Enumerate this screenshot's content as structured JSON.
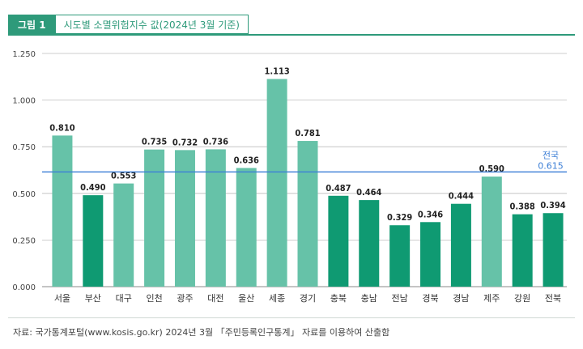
{
  "header": {
    "figure_label": "그림 1",
    "title": "시도별 소멸위험지수 값(2024년 3월 기준)"
  },
  "source": "자료: 국가통계포털(www.kosis.go.kr) 2024년 3월 「주민등록인구통계」 자료를 이용하여 산출함",
  "colors": {
    "light_bar": "#66c2a8",
    "dark_bar": "#0f9a72",
    "reference_line": "#3d7fd6",
    "accent": "#2e9a7a"
  },
  "chart_data": {
    "type": "bar",
    "categories": [
      "서울",
      "부산",
      "대구",
      "인천",
      "광주",
      "대전",
      "울산",
      "세종",
      "경기",
      "충북",
      "충남",
      "전남",
      "경북",
      "경남",
      "제주",
      "강원",
      "전북"
    ],
    "values": [
      0.81,
      0.49,
      0.553,
      0.735,
      0.732,
      0.736,
      0.636,
      1.113,
      0.781,
      0.487,
      0.464,
      0.329,
      0.346,
      0.444,
      0.59,
      0.388,
      0.394
    ],
    "value_labels": [
      "0.810",
      "0.490",
      "0.553",
      "0.735",
      "0.732",
      "0.736",
      "0.636",
      "1.113",
      "0.781",
      "0.487",
      "0.464",
      "0.329",
      "0.346",
      "0.444",
      "0.590",
      "0.388",
      "0.394"
    ],
    "highlight": [
      false,
      true,
      false,
      false,
      false,
      false,
      false,
      false,
      false,
      true,
      true,
      true,
      true,
      true,
      false,
      true,
      true
    ],
    "ylim": [
      0,
      1.25
    ],
    "yticks": [
      "0.000",
      "0.250",
      "0.500",
      "0.750",
      "1.000",
      "1.250"
    ],
    "reference": {
      "label": "전국",
      "value": 0.615,
      "value_label": "0.615"
    },
    "grid": true
  }
}
